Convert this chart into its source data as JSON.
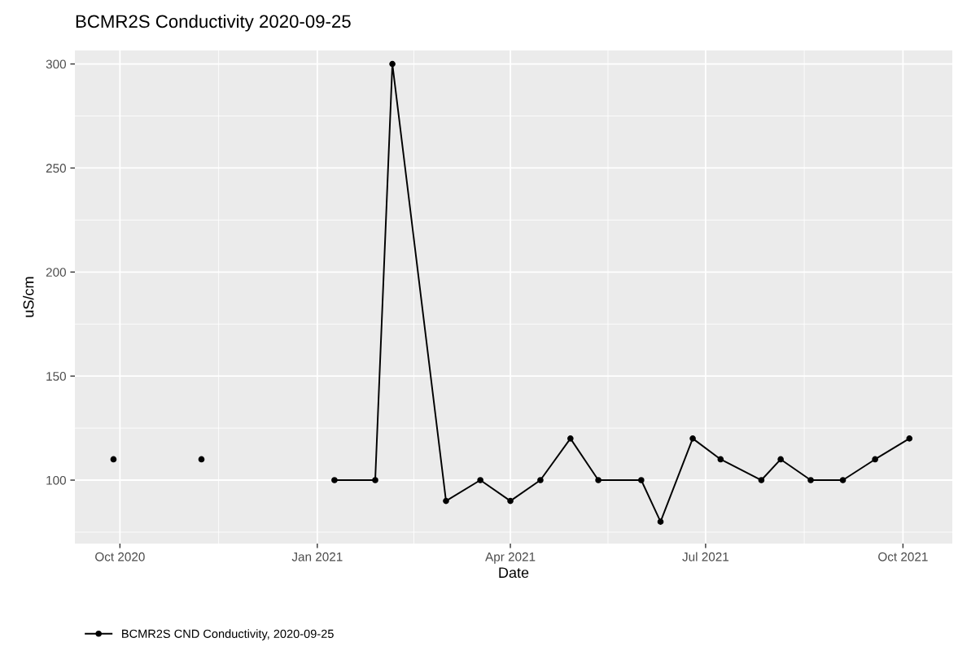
{
  "chart_data": {
    "type": "line",
    "title": "BCMR2S Conductivity 2020-09-25",
    "xlabel": "Date",
    "ylabel": "uS/cm",
    "x": [
      "2020-09-28",
      "2020-10-20",
      "2020-11-08",
      "2020-12-10",
      "2021-01-09",
      "2021-01-28",
      "2021-02-05",
      "2021-03-02",
      "2021-03-18",
      "2021-04-01",
      "2021-04-15",
      "2021-04-29",
      "2021-05-12",
      "2021-06-01",
      "2021-06-10",
      "2021-06-25",
      "2021-07-08",
      "2021-07-27",
      "2021-08-05",
      "2021-08-19",
      "2021-09-03",
      "2021-09-18",
      "2021-10-04"
    ],
    "series": [
      {
        "name": "BCMR2S CND Conductivity, 2020-09-25",
        "color": "#000000",
        "values": [
          110,
          null,
          110,
          null,
          100,
          100,
          300,
          90,
          100,
          90,
          100,
          120,
          100,
          100,
          80,
          120,
          110,
          100,
          110,
          100,
          100,
          110,
          120
        ]
      }
    ],
    "xlim": [
      "2020-09-10",
      "2021-10-24"
    ],
    "xticks": [
      {
        "value": "2020-10-01",
        "label": "Oct 2020"
      },
      {
        "value": "2021-01-01",
        "label": "Jan 2021"
      },
      {
        "value": "2021-04-01",
        "label": "Apr 2021"
      },
      {
        "value": "2021-07-01",
        "label": "Jul 2021"
      },
      {
        "value": "2021-10-01",
        "label": "Oct 2021"
      }
    ],
    "ylim": [
      69.5,
      306.5
    ],
    "yticks": [
      100,
      150,
      200,
      250,
      300
    ],
    "grid": true,
    "legend": "bottom",
    "marker": "circle",
    "line_style": "solid"
  }
}
